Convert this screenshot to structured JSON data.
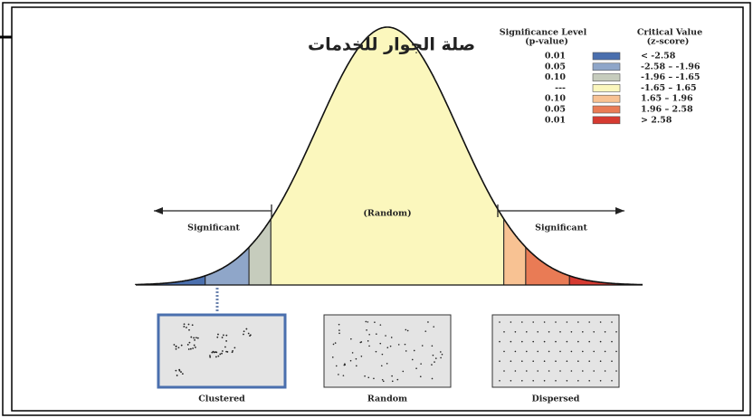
{
  "title": "صلة الجوار للخدمات",
  "legend": {
    "p_header": [
      "Significance Level",
      "(p-value)"
    ],
    "z_header": [
      "Critical Value",
      "(z-score)"
    ],
    "rows": [
      {
        "p": "0.01",
        "z": "< -2.58",
        "color": "#4a6fae"
      },
      {
        "p": "0.05",
        "z": "-2.58 – -1.96",
        "color": "#8fa6c9"
      },
      {
        "p": "0.10",
        "z": "-1.96 – -1.65",
        "color": "#c6ccbd"
      },
      {
        "p": "---",
        "z": "-1.65 – 1.65",
        "color": "#fbf7bd"
      },
      {
        "p": "0.10",
        "z": "1.65 – 1.96",
        "color": "#f8c293"
      },
      {
        "p": "0.05",
        "z": "1.96 – 2.58",
        "color": "#e97b55"
      },
      {
        "p": "0.01",
        "z": "> 2.58",
        "color": "#d63a31"
      }
    ]
  },
  "labels": {
    "left": "Significant",
    "center": "(Random)",
    "right": "Significant"
  },
  "panels": [
    "Clustered",
    "Random",
    "Dispersed"
  ]
}
